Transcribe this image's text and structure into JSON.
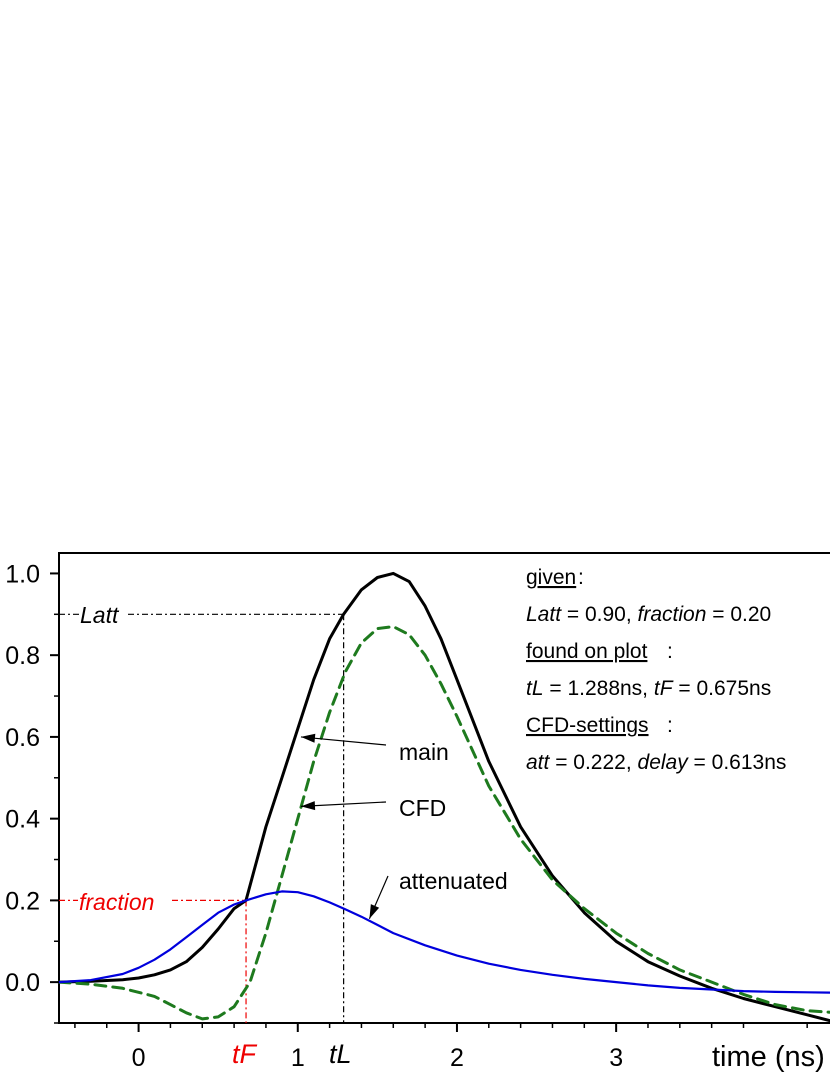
{
  "chart_data": {
    "type": "line",
    "xlabel": "time (ns)",
    "ylabel": "",
    "xlim": [
      -0.5,
      4.4
    ],
    "ylim": [
      -0.1,
      1.05
    ],
    "x_ticks": [
      {
        "value": 0,
        "label": "0"
      },
      {
        "value": 1,
        "label": "1"
      },
      {
        "value": 2,
        "label": "2"
      },
      {
        "value": 3,
        "label": "3"
      }
    ],
    "y_ticks": [
      {
        "value": 0.0,
        "label": "0.0"
      },
      {
        "value": 0.2,
        "label": "0.2"
      },
      {
        "value": 0.4,
        "label": "0.4"
      },
      {
        "value": 0.6,
        "label": "0.6"
      },
      {
        "value": 0.8,
        "label": "0.8"
      },
      {
        "value": 1.0,
        "label": "1.0"
      }
    ],
    "grid": false,
    "series": [
      {
        "name": "main",
        "color": "#000000",
        "style": "solid",
        "x": [
          -0.5,
          -0.3,
          -0.1,
          0.0,
          0.1,
          0.2,
          0.3,
          0.4,
          0.5,
          0.6,
          0.675,
          0.8,
          0.9,
          1.0,
          1.1,
          1.2,
          1.288,
          1.4,
          1.5,
          1.6,
          1.7,
          1.8,
          1.9,
          2.0,
          2.2,
          2.4,
          2.6,
          2.8,
          3.0,
          3.2,
          3.4,
          3.6,
          3.8,
          4.0,
          4.2,
          4.4
        ],
        "y": [
          0.0,
          0.002,
          0.006,
          0.01,
          0.018,
          0.03,
          0.05,
          0.085,
          0.13,
          0.18,
          0.2,
          0.38,
          0.5,
          0.62,
          0.74,
          0.84,
          0.9,
          0.96,
          0.99,
          1.0,
          0.98,
          0.92,
          0.84,
          0.74,
          0.54,
          0.38,
          0.26,
          0.17,
          0.1,
          0.05,
          0.015,
          -0.015,
          -0.04,
          -0.06,
          -0.08,
          -0.1
        ]
      },
      {
        "name": "CFD",
        "color": "#1e7a1e",
        "style": "dashed",
        "x": [
          -0.5,
          -0.3,
          -0.1,
          0.1,
          0.2,
          0.3,
          0.4,
          0.5,
          0.6,
          0.7,
          0.8,
          0.9,
          1.0,
          1.1,
          1.2,
          1.3,
          1.4,
          1.5,
          1.6,
          1.7,
          1.8,
          1.9,
          2.0,
          2.2,
          2.4,
          2.6,
          2.8,
          3.0,
          3.2,
          3.4,
          3.6,
          3.8,
          4.0,
          4.2,
          4.4
        ],
        "y": [
          0.0,
          -0.005,
          -0.015,
          -0.035,
          -0.055,
          -0.075,
          -0.09,
          -0.085,
          -0.06,
          0.0,
          0.12,
          0.26,
          0.4,
          0.54,
          0.66,
          0.76,
          0.83,
          0.865,
          0.87,
          0.85,
          0.8,
          0.73,
          0.65,
          0.48,
          0.35,
          0.25,
          0.18,
          0.12,
          0.07,
          0.03,
          0.0,
          -0.03,
          -0.055,
          -0.07,
          -0.075
        ]
      },
      {
        "name": "attenuated",
        "color": "#0000dd",
        "style": "solid",
        "x": [
          -0.5,
          -0.3,
          -0.1,
          0.0,
          0.1,
          0.2,
          0.3,
          0.4,
          0.5,
          0.6,
          0.675,
          0.8,
          0.9,
          1.0,
          1.1,
          1.2,
          1.3,
          1.4,
          1.5,
          1.6,
          1.8,
          2.0,
          2.2,
          2.4,
          2.6,
          2.8,
          3.0,
          3.2,
          3.4,
          3.6,
          3.8,
          4.0,
          4.2,
          4.4
        ],
        "y": [
          0.0,
          0.005,
          0.02,
          0.035,
          0.055,
          0.08,
          0.11,
          0.14,
          0.17,
          0.19,
          0.2,
          0.215,
          0.222,
          0.22,
          0.21,
          0.195,
          0.178,
          0.16,
          0.14,
          0.12,
          0.09,
          0.065,
          0.045,
          0.03,
          0.018,
          0.008,
          0.0,
          -0.008,
          -0.014,
          -0.018,
          -0.022,
          -0.024,
          -0.025,
          -0.026
        ]
      }
    ],
    "reference_lines": {
      "latt": {
        "label": "Latt",
        "x": 1.288,
        "y": 0.9,
        "color": "#000000"
      },
      "fraction": {
        "label": "fraction",
        "x": 0.675,
        "y": 0.2,
        "color": "#ee0000"
      }
    },
    "x_markers": [
      {
        "label": "tF",
        "x": 0.675,
        "color": "#ee0000"
      },
      {
        "label": "tL",
        "x": 1.288,
        "color": "#000000"
      }
    ],
    "curve_labels": [
      {
        "text": "main",
        "arrow_to": {
          "x": 1.02,
          "y": 0.6
        }
      },
      {
        "text": "CFD",
        "arrow_to": {
          "x": 1.02,
          "y": 0.43
        }
      },
      {
        "text": "attenuated",
        "arrow_to": {
          "x": 1.45,
          "y": 0.155
        }
      }
    ],
    "info_box": {
      "given_heading": "given",
      "given_line": {
        "latt_name": "Latt",
        "latt_value": " = 0.90, ",
        "fraction_name": "fraction",
        "fraction_value": " = 0.20"
      },
      "found_heading": "found on plot",
      "found_line": {
        "tl_name": "tL",
        "tl_value": " = 1.288ns,  ",
        "tf_name": "tF",
        "tf_value": " = 0.675ns"
      },
      "cfd_heading": "CFD-settings",
      "cfd_line": {
        "att_name": "att",
        "att_value": " = 0.222, ",
        "delay_name": "delay",
        "delay_value": " = 0.613ns"
      }
    }
  }
}
